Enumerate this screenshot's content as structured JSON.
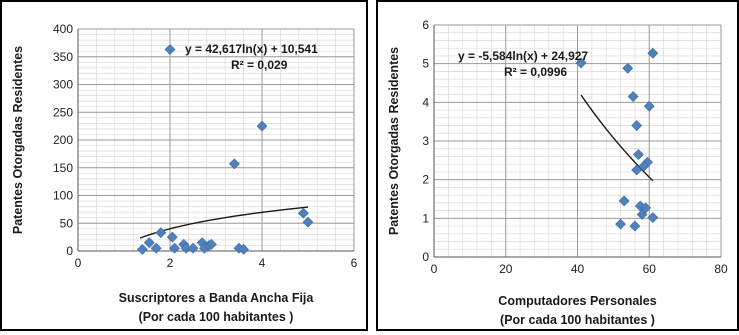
{
  "chart_data": [
    {
      "type": "scatter",
      "xlabel": "Suscriptores a Banda Ancha Fija",
      "xlabel_sub": "(Por cada 100 habitantes )",
      "ylabel": "Patentes Otorgadas Residentes",
      "xlim": [
        0,
        6
      ],
      "ylim": [
        0,
        400
      ],
      "xticks": [
        0,
        2,
        4,
        6
      ],
      "yticks": [
        0,
        50,
        100,
        150,
        200,
        250,
        300,
        350,
        400
      ],
      "grid": true,
      "marker_color": "#4f81bd",
      "trend_color": "#1a1a1a",
      "trendline": {
        "type": "log",
        "a": 42.617,
        "b": 10.541,
        "x_from": 1.35,
        "x_to": 5.0
      },
      "equation": "y = 42,617ln(x) + 10,541",
      "r2": "R² = 0,029",
      "points": [
        {
          "x": 1.4,
          "y": 3
        },
        {
          "x": 1.55,
          "y": 15
        },
        {
          "x": 1.7,
          "y": 5
        },
        {
          "x": 1.8,
          "y": 33
        },
        {
          "x": 2.05,
          "y": 25
        },
        {
          "x": 2.1,
          "y": 5
        },
        {
          "x": 2.3,
          "y": 12
        },
        {
          "x": 2.35,
          "y": 5
        },
        {
          "x": 2.5,
          "y": 5
        },
        {
          "x": 2.7,
          "y": 15
        },
        {
          "x": 2.75,
          "y": 5
        },
        {
          "x": 2.85,
          "y": 10
        },
        {
          "x": 2.9,
          "y": 12
        },
        {
          "x": 3.4,
          "y": 157
        },
        {
          "x": 3.5,
          "y": 5
        },
        {
          "x": 3.6,
          "y": 3
        },
        {
          "x": 4.0,
          "y": 225
        },
        {
          "x": 4.9,
          "y": 68
        },
        {
          "x": 5.0,
          "y": 52
        },
        {
          "x": 2.0,
          "y": 363
        }
      ]
    },
    {
      "type": "scatter",
      "xlabel": "Computadores Personales",
      "xlabel_sub": "(Por cada 100 habitantes )",
      "ylabel": "Patentes Otorgadas Residentes",
      "xlim": [
        0,
        80
      ],
      "ylim": [
        0,
        6
      ],
      "xticks": [
        0,
        20,
        40,
        60,
        80
      ],
      "yticks": [
        0,
        1,
        2,
        3,
        4,
        5,
        6
      ],
      "grid": true,
      "marker_color": "#4f81bd",
      "trend_color": "#1a1a1a",
      "trendline": {
        "type": "log",
        "a": -5.584,
        "b": 24.927,
        "x_from": 41,
        "x_to": 61
      },
      "equation": "y = -5,584ln(x) + 24,927",
      "r2": "R² = 0,0996",
      "points": [
        {
          "x": 41,
          "y": 5.02
        },
        {
          "x": 54,
          "y": 4.88
        },
        {
          "x": 61,
          "y": 5.27
        },
        {
          "x": 55.5,
          "y": 4.15
        },
        {
          "x": 60,
          "y": 3.9
        },
        {
          "x": 56.5,
          "y": 3.4
        },
        {
          "x": 57,
          "y": 2.65
        },
        {
          "x": 59.5,
          "y": 2.45
        },
        {
          "x": 58.5,
          "y": 2.35
        },
        {
          "x": 56.5,
          "y": 2.25
        },
        {
          "x": 53,
          "y": 1.45
        },
        {
          "x": 57.5,
          "y": 1.32
        },
        {
          "x": 59,
          "y": 1.27
        },
        {
          "x": 58,
          "y": 1.1
        },
        {
          "x": 61,
          "y": 1.02
        },
        {
          "x": 52,
          "y": 0.85
        },
        {
          "x": 56,
          "y": 0.8
        }
      ]
    }
  ]
}
